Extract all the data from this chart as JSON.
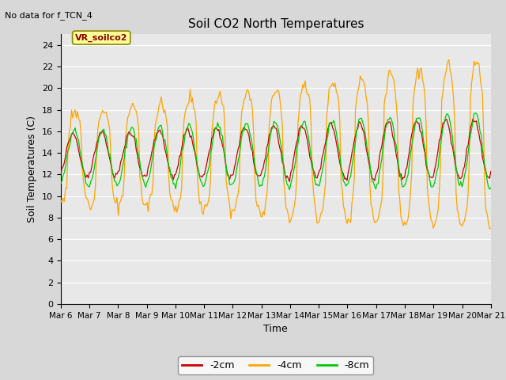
{
  "title": "Soil CO2 North Temperatures",
  "no_data_label": "No data for f_TCN_4",
  "site_label": "VR_soilco2",
  "ylabel": "Soil Temperatures (C)",
  "xlabel": "Time",
  "xlabels": [
    "Mar 6",
    "Mar 7",
    "Mar 8",
    "Mar 9",
    "Mar 10",
    "Mar 11",
    "Mar 12",
    "Mar 13",
    "Mar 14",
    "Mar 15",
    "Mar 16",
    "Mar 17",
    "Mar 18",
    "Mar 19",
    "Mar 20",
    "Mar 21"
  ],
  "ylim": [
    0,
    25
  ],
  "yticks": [
    0,
    2,
    4,
    6,
    8,
    10,
    12,
    14,
    16,
    18,
    20,
    22,
    24
  ],
  "colors": {
    "2cm": "#cc0000",
    "4cm": "#ffa500",
    "8cm": "#00cc00",
    "background": "#e8e8e8",
    "grid": "#ffffff",
    "site_box_bg": "#ffff99",
    "site_box_border": "#999900"
  },
  "legend": [
    {
      "label": "-2cm",
      "color": "#cc0000"
    },
    {
      "label": "-4cm",
      "color": "#ffa500"
    },
    {
      "label": "-8cm",
      "color": "#00cc00"
    }
  ],
  "figsize": [
    6.4,
    4.8
  ],
  "dpi": 100
}
